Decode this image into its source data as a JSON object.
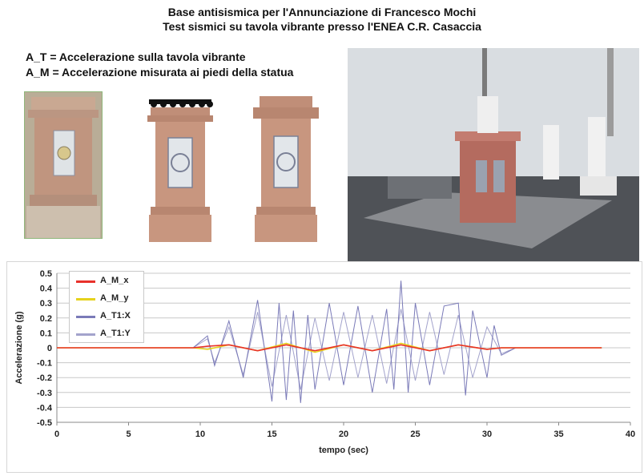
{
  "header": {
    "line1": "Base antisismica per l'Annunciazione di Francesco Mochi",
    "line2": "Test sismici  su tavola vibrante presso l'ENEA  C.R. Casaccia"
  },
  "definitions": {
    "a_t": "A_T = Accelerazione sulla tavola vibrante",
    "a_m": "A_M = Accelerazione misurata ai piedi della statua"
  },
  "images": {
    "photo_small_icon": "pedestal-photo-icon",
    "diagram_1_icon": "pedestal-with-base-diagram-icon",
    "diagram_2_icon": "pedestal-diagram-icon",
    "photo_large_icon": "shake-table-lab-photo-icon"
  },
  "chart_data": {
    "type": "line",
    "title": "",
    "xlabel": "tempo (sec)",
    "ylabel": "Accelerazione  (g)",
    "xlim": [
      0,
      40
    ],
    "ylim": [
      -0.5,
      0.5
    ],
    "x_ticks": [
      0,
      5,
      10,
      15,
      20,
      25,
      30,
      35,
      40
    ],
    "y_ticks": [
      0.5,
      0.4,
      0.3,
      0.2,
      0.1,
      0,
      -0.1,
      -0.2,
      -0.3,
      -0.4,
      -0.5
    ],
    "y_tick_labels": [
      "0.5",
      "0.4",
      "0.3",
      "0.2",
      "0.1",
      "0",
      "-0.1",
      "-0.2",
      "-0.3",
      "-0.4",
      "-0.5"
    ],
    "grid": true,
    "legend_position": "top-left",
    "series": [
      {
        "name": "A_M_x",
        "color": "#e8312a",
        "x": [
          0,
          5,
          9.5,
          10.5,
          12,
          14,
          16,
          18,
          20,
          22,
          24,
          26,
          28,
          30,
          31,
          32,
          35,
          38
        ],
        "y": [
          0,
          0,
          0,
          0.01,
          0.02,
          -0.02,
          0.02,
          -0.02,
          0.02,
          -0.02,
          0.02,
          -0.02,
          0.02,
          -0.01,
          0,
          0,
          0,
          0
        ]
      },
      {
        "name": "A_M_y",
        "color": "#e6d21c",
        "x": [
          0,
          5,
          9.5,
          10.5,
          12,
          14,
          16,
          18,
          20,
          22,
          24,
          26,
          28,
          30,
          31,
          32,
          35,
          38
        ],
        "y": [
          0,
          0,
          0,
          -0.01,
          0.02,
          -0.02,
          0.03,
          -0.03,
          0.02,
          -0.02,
          0.03,
          -0.02,
          0.02,
          -0.01,
          0,
          0,
          0,
          0
        ]
      },
      {
        "name": "A_T1:X",
        "color": "#7a7ab8",
        "x": [
          0,
          5,
          9.5,
          10.5,
          11,
          12,
          13,
          14,
          15,
          15.5,
          16,
          16.5,
          17,
          17.5,
          18,
          19,
          20,
          21,
          22,
          23,
          23.5,
          24,
          24.5,
          25,
          26,
          27,
          28,
          28.5,
          29,
          30,
          30.5,
          31,
          32,
          35,
          38
        ],
        "y": [
          0,
          0,
          0,
          0.08,
          -0.12,
          0.18,
          -0.2,
          0.32,
          -0.36,
          0.3,
          -0.35,
          0.25,
          -0.37,
          0.22,
          -0.28,
          0.3,
          -0.25,
          0.28,
          -0.3,
          0.26,
          -0.28,
          0.45,
          -0.3,
          0.3,
          -0.25,
          0.28,
          0.3,
          -0.32,
          0.25,
          -0.2,
          0.15,
          -0.05,
          0,
          0,
          0
        ]
      },
      {
        "name": "A_T1:Y",
        "color": "#a3a3cc",
        "x": [
          0,
          5,
          9.5,
          10.5,
          11,
          12,
          13,
          14,
          15,
          16,
          17,
          18,
          19,
          20,
          21,
          22,
          23,
          24,
          25,
          26,
          27,
          28,
          29,
          30,
          31,
          32,
          35,
          38
        ],
        "y": [
          0,
          0,
          0,
          0.06,
          -0.1,
          0.14,
          -0.18,
          0.24,
          -0.26,
          0.22,
          -0.28,
          0.2,
          -0.22,
          0.24,
          -0.2,
          0.22,
          -0.24,
          0.26,
          -0.22,
          0.24,
          -0.18,
          0.22,
          -0.2,
          0.14,
          -0.04,
          0,
          0,
          0
        ]
      }
    ]
  }
}
